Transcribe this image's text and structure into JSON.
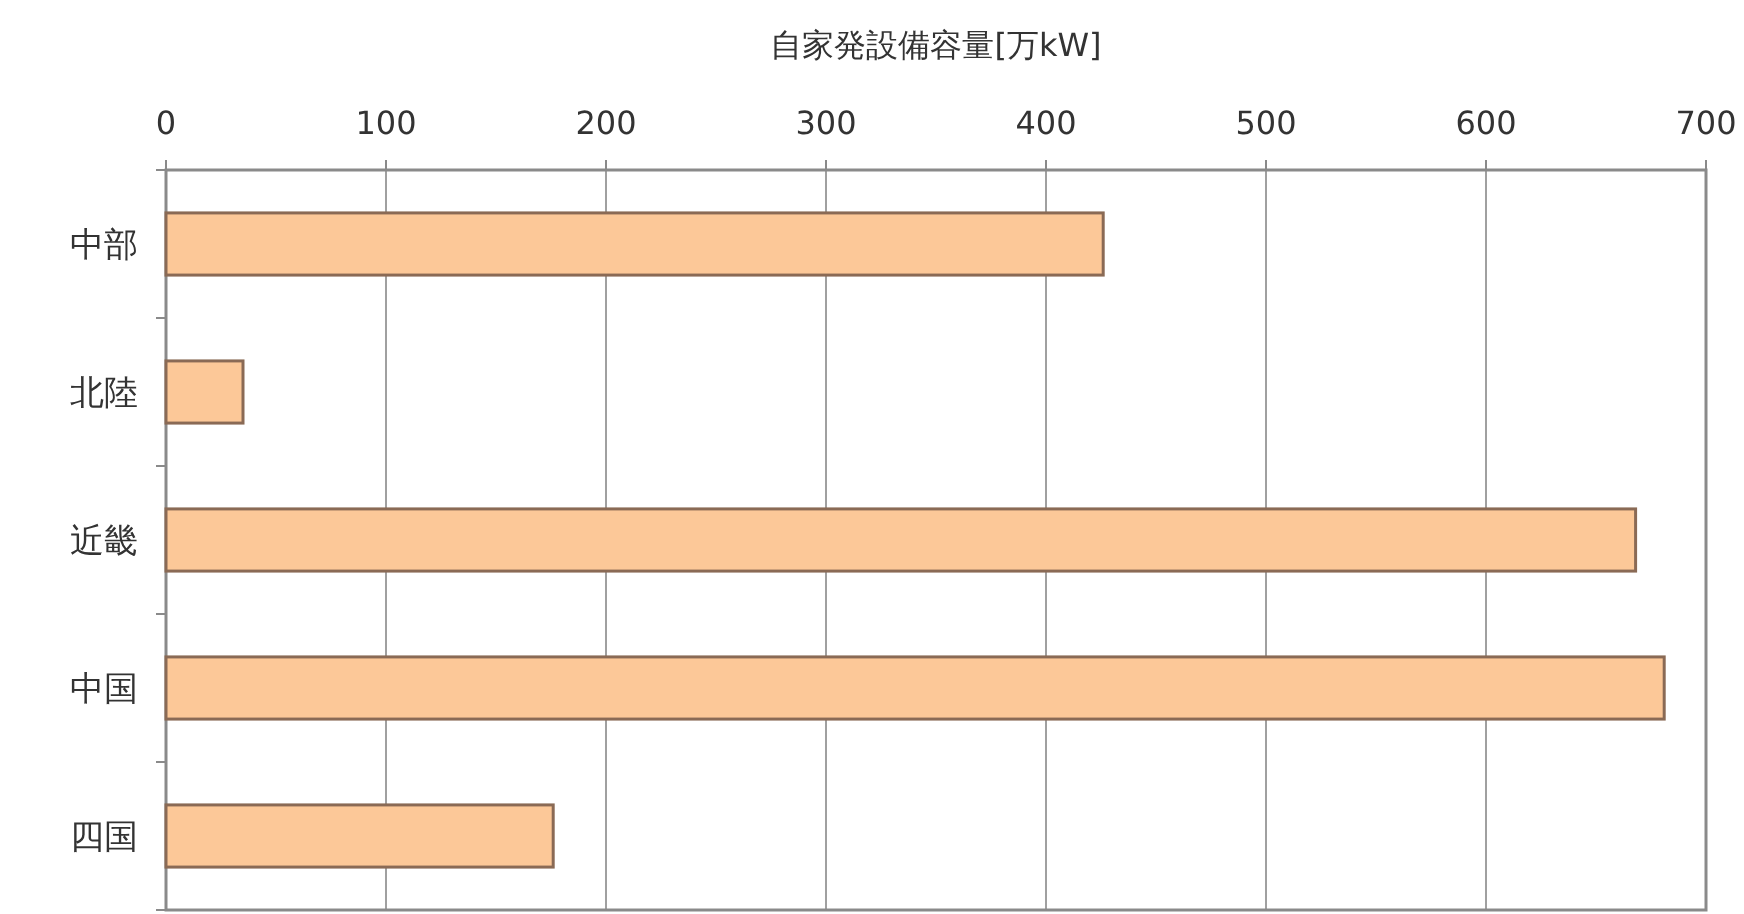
{
  "chart_data": {
    "type": "bar",
    "orientation": "horizontal",
    "xlabel": "自家発設備容量[万kW]",
    "categories": [
      "中部",
      "北陸",
      "近畿",
      "中国",
      "四国"
    ],
    "values": [
      426,
      35,
      668,
      681,
      176
    ],
    "color": "#fcc898",
    "xlim": [
      0,
      700
    ],
    "xticks": [
      0,
      100,
      200,
      300,
      400,
      500,
      600,
      700
    ],
    "grid": "x"
  }
}
